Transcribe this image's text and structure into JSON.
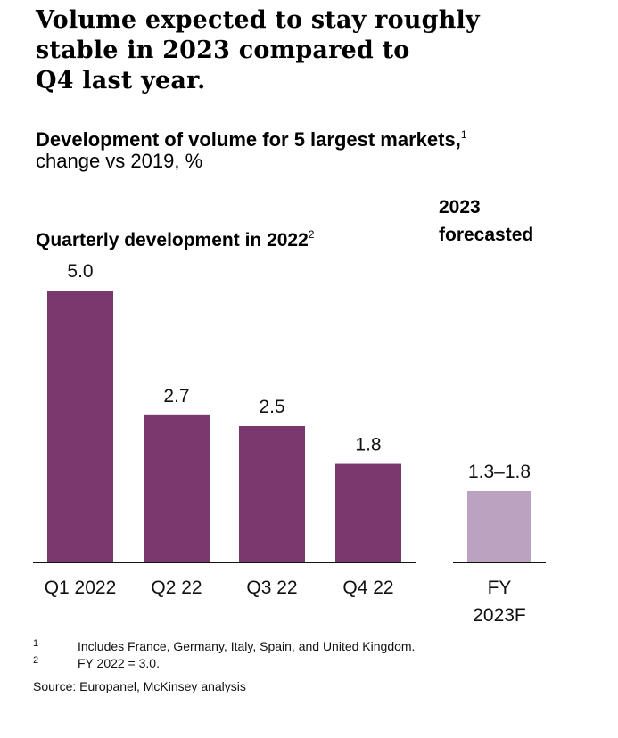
{
  "title": "Volume expected to stay roughly stable in 2023 compared to Q4 last year.",
  "title_lines": [
    "Volume expected to stay roughly",
    "stable in 2023 compared to",
    "Q4 last year."
  ],
  "subtitle": "Development of volume for 5 largest markets,",
  "subtitle_footnote": "1",
  "unit": "change vs 2019, %",
  "section_left": "Quarterly development in 2022",
  "section_left_footnote": "2",
  "section_right_lines": [
    "2023",
    "forecasted"
  ],
  "colors": {
    "actual": "#7a386e",
    "forecast": "#bba2c1",
    "axis": "#111111"
  },
  "chart_data": {
    "type": "bar",
    "title": "Development of volume for 5 largest markets, change vs 2019, %",
    "xlabel": "",
    "ylabel": "change vs 2019, %",
    "ylim": [
      0,
      5.0
    ],
    "grid": false,
    "groups": [
      {
        "name": "Quarterly development in 2022",
        "categories": [
          "Q1 2022",
          "Q2 22",
          "Q3 22",
          "Q4 22"
        ],
        "values": [
          5.0,
          2.7,
          2.5,
          1.8
        ],
        "labels": [
          "5.0",
          "2.7",
          "2.5",
          "1.8"
        ]
      },
      {
        "name": "2023 forecasted",
        "categories": [
          "FY 2023F"
        ],
        "category_lines": [
          [
            "FY",
            "2023F"
          ]
        ],
        "range": [
          1.3,
          1.8
        ],
        "values": [
          1.3
        ],
        "labels": [
          "1.3–1.8"
        ]
      }
    ]
  },
  "footnotes": [
    {
      "num": "1",
      "text": "Includes France, Germany, Italy, Spain, and United Kingdom."
    },
    {
      "num": "2",
      "text": "FY 2022 = 3.0."
    }
  ],
  "source": "Source: Europanel, McKinsey analysis"
}
